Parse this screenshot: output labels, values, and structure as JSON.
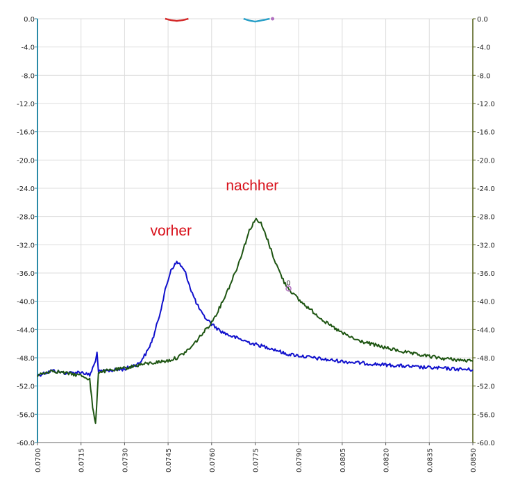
{
  "chart_data": {
    "type": "line",
    "title": "",
    "xlabel": "",
    "ylabel": "",
    "xlim": [
      0.07,
      0.085
    ],
    "ylim": [
      -60,
      0
    ],
    "x_ticks": [
      "0.0700",
      "0.0715",
      "0.0730",
      "0.0745",
      "0.0760",
      "0.0775",
      "0.0790",
      "0.0805",
      "0.0820",
      "0.0835",
      "0.0850"
    ],
    "y_ticks_left": [
      "0.0",
      "-4.0",
      "-8.0",
      "-12.0",
      "-16.0",
      "-20.0",
      "-24.0",
      "-28.0",
      "-32.0",
      "-36.0",
      "-40.0",
      "-44.0",
      "-48.0",
      "-52.0",
      "-56.0",
      "-60.0"
    ],
    "y_ticks_right": [
      "0.0",
      "-4.0",
      "-8.0",
      "-12.0",
      "-16.0",
      "-20.0",
      "-24.0",
      "-28.0",
      "-32.0",
      "-36.0",
      "-40.0",
      "-44.0",
      "-48.0",
      "-52.0",
      "-56.0",
      "-60.0"
    ],
    "grid": true,
    "legend": "none",
    "colors": {
      "left_axis": "#2a8aa6",
      "right_axis": "#4f5a12",
      "grid": "#dcdcdc"
    },
    "series": [
      {
        "color": "#1010cc",
        "x": [
          0.07,
          0.0705,
          0.071,
          0.0715,
          0.0718,
          0.072,
          0.07205,
          0.0721,
          0.0725,
          0.073,
          0.0735,
          0.0738,
          0.074,
          0.0742,
          0.0744,
          0.0746,
          0.0748,
          0.0749,
          0.0751,
          0.0753,
          0.0755,
          0.0757,
          0.076,
          0.0763,
          0.0766,
          0.077,
          0.0775,
          0.078,
          0.0783,
          0.0785,
          0.079,
          0.0795,
          0.08,
          0.081,
          0.082,
          0.083,
          0.084,
          0.085
        ],
        "y": [
          -50.5,
          -49.8,
          -50.2,
          -50.0,
          -50.5,
          -48.5,
          -47.0,
          -50.0,
          -49.8,
          -49.6,
          -48.8,
          -47.0,
          -45.0,
          -42.0,
          -38.5,
          -35.5,
          -34.5,
          -34.7,
          -36.0,
          -38.5,
          -40.5,
          -42.0,
          -43.2,
          -44.2,
          -44.8,
          -45.4,
          -46.1,
          -46.6,
          -47.0,
          -47.4,
          -47.7,
          -48.0,
          -48.3,
          -48.7,
          -49.0,
          -49.3,
          -49.5,
          -49.7
        ]
      },
      {
        "color": "#1e5512",
        "x": [
          0.07,
          0.0705,
          0.071,
          0.0715,
          0.0718,
          0.0719,
          0.072,
          0.0721,
          0.0725,
          0.073,
          0.0735,
          0.074,
          0.0745,
          0.0748,
          0.075,
          0.0753,
          0.0756,
          0.076,
          0.0763,
          0.0766,
          0.0769,
          0.0771,
          0.0773,
          0.0775,
          0.0777,
          0.0779,
          0.0782,
          0.0785,
          0.0787,
          0.079,
          0.0795,
          0.08,
          0.0805,
          0.081,
          0.082,
          0.083,
          0.084,
          0.085
        ],
        "y": [
          -50.5,
          -49.8,
          -50.2,
          -50.5,
          -51.0,
          -55.0,
          -57.5,
          -50.0,
          -49.8,
          -49.5,
          -49.0,
          -48.7,
          -48.4,
          -48.0,
          -47.5,
          -46.5,
          -45.0,
          -43.0,
          -40.7,
          -38.0,
          -35.0,
          -32.5,
          -30.0,
          -28.4,
          -29.0,
          -31.0,
          -34.5,
          -37.3,
          -38.4,
          -39.8,
          -41.5,
          -43.2,
          -44.5,
          -45.5,
          -46.6,
          -47.5,
          -48.1,
          -48.5
        ]
      }
    ],
    "top_traces": [
      {
        "color": "#d42a2a",
        "x": [
          0.0744,
          0.0746,
          0.0748,
          0.075,
          0.0752
        ],
        "y": [
          0,
          -0.2,
          -0.3,
          -0.2,
          0
        ]
      },
      {
        "color": "#2aa0c8",
        "x": [
          0.0771,
          0.0773,
          0.0775,
          0.0777,
          0.078
        ],
        "y": [
          0,
          -0.25,
          -0.4,
          -0.25,
          0
        ]
      }
    ],
    "marker": {
      "label": "0",
      "x": 0.07865,
      "y": -38.2,
      "color": "#b070c0"
    },
    "annotations": [
      {
        "text": "vorher",
        "x": 0.0746,
        "y": -30.7
      },
      {
        "text": "nachher",
        "x": 0.0774,
        "y": -24.3
      }
    ]
  }
}
